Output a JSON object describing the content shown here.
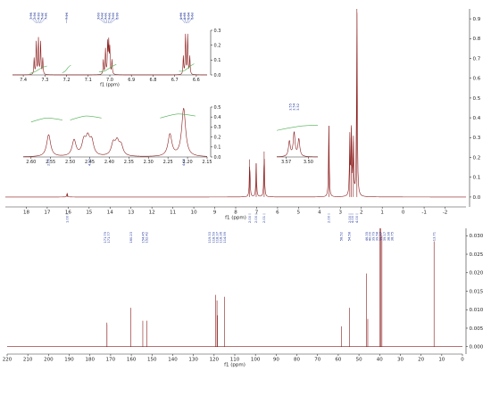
{
  "chart_data": [
    {
      "type": "line",
      "name": "1H NMR",
      "xlabel": "f1 (ppm)",
      "xlim": [
        19,
        -3
      ],
      "xticks": [
        18,
        17,
        16,
        15,
        14,
        13,
        12,
        11,
        10,
        9,
        8,
        7,
        6,
        5,
        4,
        3,
        2,
        1,
        0,
        -1,
        -2
      ],
      "ylim": [
        -0.05,
        0.95
      ],
      "yticks": [
        0.0,
        0.1,
        0.2,
        0.3,
        0.4,
        0.5,
        0.6,
        0.7,
        0.8,
        0.9
      ],
      "peaks": [
        {
          "x": 16.05,
          "y": 0.02
        },
        {
          "x": 7.33,
          "y": 0.19
        },
        {
          "x": 7.02,
          "y": 0.17
        },
        {
          "x": 6.64,
          "y": 0.23
        },
        {
          "x": 3.55,
          "y": 0.36
        },
        {
          "x": 2.55,
          "y": 0.3
        },
        {
          "x": 2.47,
          "y": 0.35
        },
        {
          "x": 2.38,
          "y": 0.28
        },
        {
          "x": 2.21,
          "y": 0.95
        }
      ],
      "integrals": [
        {
          "x": 16.05,
          "label": "1.00"
        },
        {
          "x": 7.33,
          "label": "2.00"
        },
        {
          "x": 7.02,
          "label": "2.00"
        },
        {
          "x": 6.64,
          "label": "2.01"
        },
        {
          "x": 3.55,
          "label": "2.00"
        },
        {
          "x": 2.55,
          "label": "2.00"
        },
        {
          "x": 2.43,
          "label": "4.00"
        },
        {
          "x": 2.21,
          "label": "4.00"
        }
      ]
    },
    {
      "type": "line",
      "name": "1H NMR inset aromatic",
      "xlabel": "f1 (ppm)",
      "xlim": [
        7.45,
        6.55
      ],
      "xticks": [
        7.4,
        7.3,
        7.2,
        7.1,
        7.0,
        6.9,
        6.8,
        6.7,
        6.6
      ],
      "ylim": [
        0.0,
        0.3
      ],
      "yticks": [
        0.0,
        0.1,
        0.2,
        0.3
      ],
      "peak_labels": [
        "7.35",
        "7.34",
        "7.33",
        "7.32",
        "7.31",
        "7.03",
        "7.02",
        "7.01",
        "7.01",
        "7.00",
        "6.99",
        "6.66",
        "6.65",
        "6.64",
        "6.63",
        "7.26"
      ]
    },
    {
      "type": "line",
      "name": "1H NMR inset aliphatic",
      "xlabel": "",
      "xlim": [
        2.62,
        2.15
      ],
      "xticks": [
        2.6,
        2.55,
        2.5,
        2.45,
        2.4,
        2.35,
        2.3,
        2.25,
        2.2,
        2.15
      ],
      "ylim": [
        0.0,
        0.5
      ],
      "yticks": [
        0.0,
        0.1,
        0.2,
        0.3,
        0.4,
        0.5
      ],
      "integral_labels": [
        "2.00",
        "4.00",
        "4.00"
      ]
    },
    {
      "type": "line",
      "name": "1H NMR inset 3.5",
      "xlabel": "",
      "xlim": [
        3.6,
        3.47
      ],
      "xticks": [
        3.57,
        3.5
      ],
      "peak_labels": [
        "3.55",
        "3.54",
        "3.52"
      ]
    },
    {
      "type": "line",
      "name": "13C NMR",
      "xlabel": "f1 (ppm)",
      "xlim": [
        220,
        0
      ],
      "xticks": [
        220,
        210,
        200,
        190,
        180,
        170,
        160,
        150,
        140,
        130,
        120,
        110,
        100,
        90,
        80,
        70,
        60,
        50,
        40,
        30,
        20,
        10,
        0
      ],
      "ylim": [
        -0.002,
        0.032
      ],
      "yticks": [
        0.0,
        0.005,
        0.01,
        0.015,
        0.02,
        0.025,
        0.03
      ],
      "peaks": [
        {
          "x": 171.79,
          "y": 0.0065
        },
        {
          "x": 171.77,
          "y": 0.006
        },
        {
          "x": 160.23,
          "y": 0.0105
        },
        {
          "x": 154.45,
          "y": 0.007
        },
        {
          "x": 152.42,
          "y": 0.007
        },
        {
          "x": 119.33,
          "y": 0.014
        },
        {
          "x": 118.59,
          "y": 0.0125
        },
        {
          "x": 118.37,
          "y": 0.0085
        },
        {
          "x": 114.99,
          "y": 0.0135
        },
        {
          "x": 58.52,
          "y": 0.0055
        },
        {
          "x": 54.58,
          "y": 0.0105
        },
        {
          "x": 46.35,
          "y": 0.0198
        },
        {
          "x": 45.74,
          "y": 0.0075
        },
        {
          "x": 40.0,
          "y": 0.033
        },
        {
          "x": 39.5,
          "y": 0.033
        },
        {
          "x": 38.9,
          "y": 0.03
        },
        {
          "x": 13.71,
          "y": 0.0285
        }
      ],
      "peak_labels": [
        "171.79",
        "171.77",
        "160.23",
        "154.45",
        "152.42",
        "119.33",
        "118.59",
        "118.37",
        "118.36",
        "114.99",
        "58.52",
        "54.58",
        "46.35",
        "40.00",
        "39.79",
        "39.58",
        "39.37",
        "39.17",
        "38.96",
        "38.75",
        "13.71"
      ]
    }
  ]
}
